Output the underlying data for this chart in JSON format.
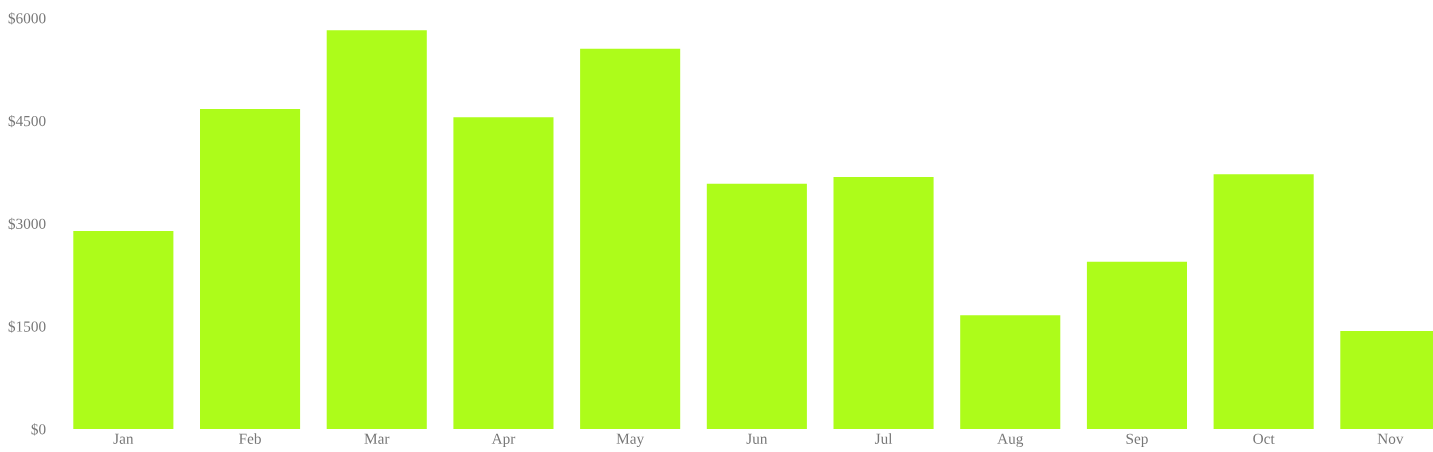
{
  "chart_data": {
    "type": "bar",
    "categories": [
      "Jan",
      "Feb",
      "Mar",
      "Apr",
      "May",
      "Jun",
      "Jul",
      "Aug",
      "Sep",
      "Oct",
      "Nov"
    ],
    "values": [
      2890,
      4670,
      5820,
      4550,
      5550,
      3580,
      3680,
      1660,
      2440,
      3720,
      1430
    ],
    "color": "#adfc1a",
    "ylim": [
      0,
      6000
    ],
    "yticks": [
      {
        "value": 0,
        "label": "$0"
      },
      {
        "value": 1500,
        "label": "$1500"
      },
      {
        "value": 3000,
        "label": "$3000"
      },
      {
        "value": 4500,
        "label": "$4500"
      },
      {
        "value": 6000,
        "label": "$6000"
      }
    ],
    "grid": false
  }
}
